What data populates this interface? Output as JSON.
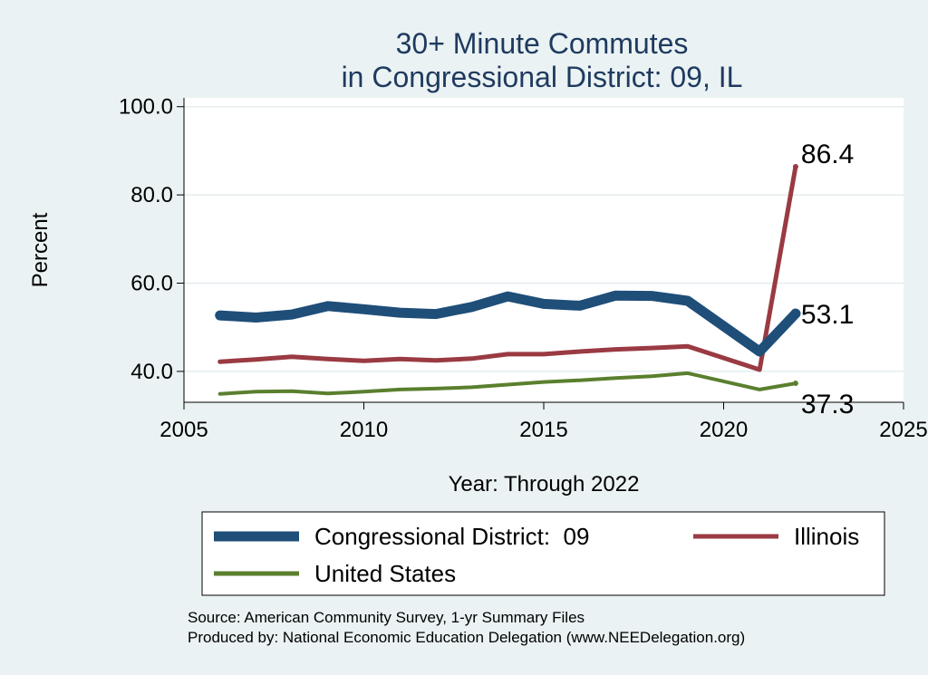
{
  "chart_data": {
    "type": "line",
    "title": [
      "30+ Minute Commutes",
      "in Congressional District:  09, IL"
    ],
    "xlabel": "Year: Through 2022",
    "ylabel": "Percent",
    "xlim": [
      2005,
      2025
    ],
    "ylim": [
      33,
      102
    ],
    "x_ticks": [
      2005,
      2010,
      2015,
      2020,
      2025
    ],
    "x_tick_labels": [
      "2005",
      "2010",
      "2015",
      "2020",
      "2025"
    ],
    "y_ticks": [
      40,
      60,
      80,
      100
    ],
    "y_tick_labels": [
      "40.0",
      "60.0",
      "80.0",
      "100.0"
    ],
    "grid": "horizontal",
    "legend_position": "bottom",
    "x": [
      2006,
      2007,
      2008,
      2009,
      2010,
      2011,
      2012,
      2013,
      2014,
      2015,
      2016,
      2017,
      2018,
      2019,
      2021,
      2022
    ],
    "series": [
      {
        "name": "Congressional District:  09",
        "color": "#1f4e79",
        "values": [
          52.7,
          52.2,
          52.9,
          54.8,
          54.1,
          53.3,
          53.0,
          54.6,
          57.0,
          55.3,
          54.9,
          57.2,
          57.1,
          56.0,
          44.5,
          53.1
        ],
        "end_label": "53.1"
      },
      {
        "name": "Illinois",
        "color": "#9a3a42",
        "values": [
          42.2,
          42.7,
          43.3,
          42.8,
          42.4,
          42.8,
          42.5,
          42.9,
          43.9,
          43.9,
          44.5,
          45.0,
          45.3,
          45.7,
          40.4,
          86.4
        ],
        "end_label": "86.4"
      },
      {
        "name": "United States",
        "color": "#5a7f2e",
        "values": [
          34.9,
          35.4,
          35.5,
          35.0,
          35.4,
          35.9,
          36.1,
          36.4,
          37.0,
          37.6,
          38.0,
          38.5,
          38.9,
          39.6,
          35.9,
          37.3
        ],
        "end_label": "37.3"
      }
    ],
    "source_lines": [
      "Source: American Community Survey, 1-yr Summary Files",
      "Produced by: National Economic Education Delegation (www.NEEDelegation.org)"
    ]
  }
}
